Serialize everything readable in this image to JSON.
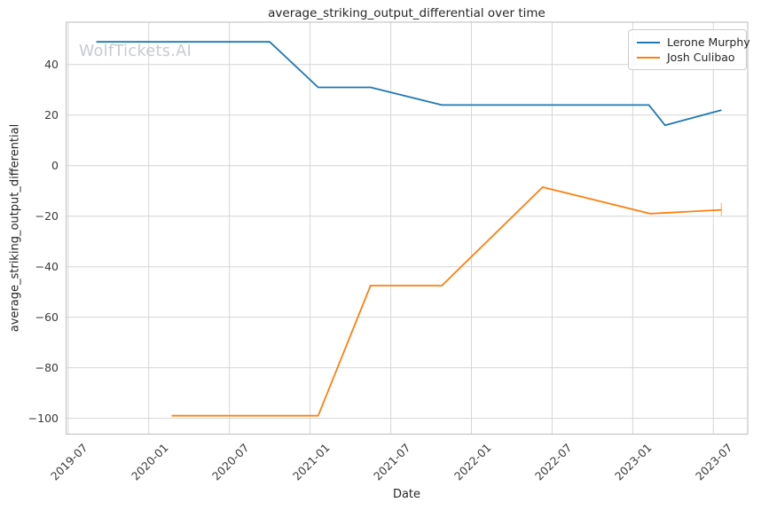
{
  "watermark": "WolfTickets.AI",
  "chart_data": {
    "type": "line",
    "title": "average_striking_output_differential over time",
    "xlabel": "Date",
    "ylabel": "average_striking_output_differential",
    "x_tick_labels": [
      "2019-07",
      "2020-01",
      "2020-07",
      "2021-01",
      "2021-07",
      "2022-01",
      "2022-07",
      "2023-01",
      "2023-07"
    ],
    "y_ticks": [
      40,
      20,
      0,
      -20,
      -40,
      -60,
      -80,
      -100
    ],
    "x_range_months_since_2019_07": [
      -0.15,
      50.55
    ],
    "y_range": [
      -106.3,
      56.8
    ],
    "grid": true,
    "grid_color": "#d6d6d6",
    "spine_color": "#c6c6c6",
    "legend_position": "upper right",
    "series": [
      {
        "name": "Lerone Murphy",
        "color": "#1f77b4",
        "points": [
          {
            "date": "2019-09",
            "m": 2.1,
            "y": 49
          },
          {
            "date": "2020-10",
            "m": 15.0,
            "y": 49
          },
          {
            "date": "2021-01",
            "m": 18.6,
            "y": 31
          },
          {
            "date": "2021-05",
            "m": 22.5,
            "y": 31
          },
          {
            "date": "2021-11",
            "m": 27.8,
            "y": 24
          },
          {
            "date": "2023-02",
            "m": 43.2,
            "y": 24
          },
          {
            "date": "2023-03",
            "m": 44.4,
            "y": 16
          },
          {
            "date": "2023-07",
            "m": 48.6,
            "y": 22
          }
        ]
      },
      {
        "name": "Josh Culibao",
        "color": "#ff7f0e",
        "points": [
          {
            "date": "2020-03",
            "m": 7.7,
            "y": -99
          },
          {
            "date": "2021-01",
            "m": 18.6,
            "y": -99
          },
          {
            "date": "2021-05",
            "m": 22.5,
            "y": -47.5
          },
          {
            "date": "2021-11",
            "m": 27.8,
            "y": -47.5
          },
          {
            "date": "2022-06",
            "m": 35.3,
            "y": -8.5
          },
          {
            "date": "2023-02",
            "m": 43.3,
            "y": -19
          },
          {
            "date": "2023-07",
            "m": 48.6,
            "y": -17.5
          }
        ],
        "end_error_bar": {
          "m": 48.6,
          "from": -20.1,
          "to": -14.7,
          "color": "#ffbe8a"
        }
      }
    ]
  }
}
